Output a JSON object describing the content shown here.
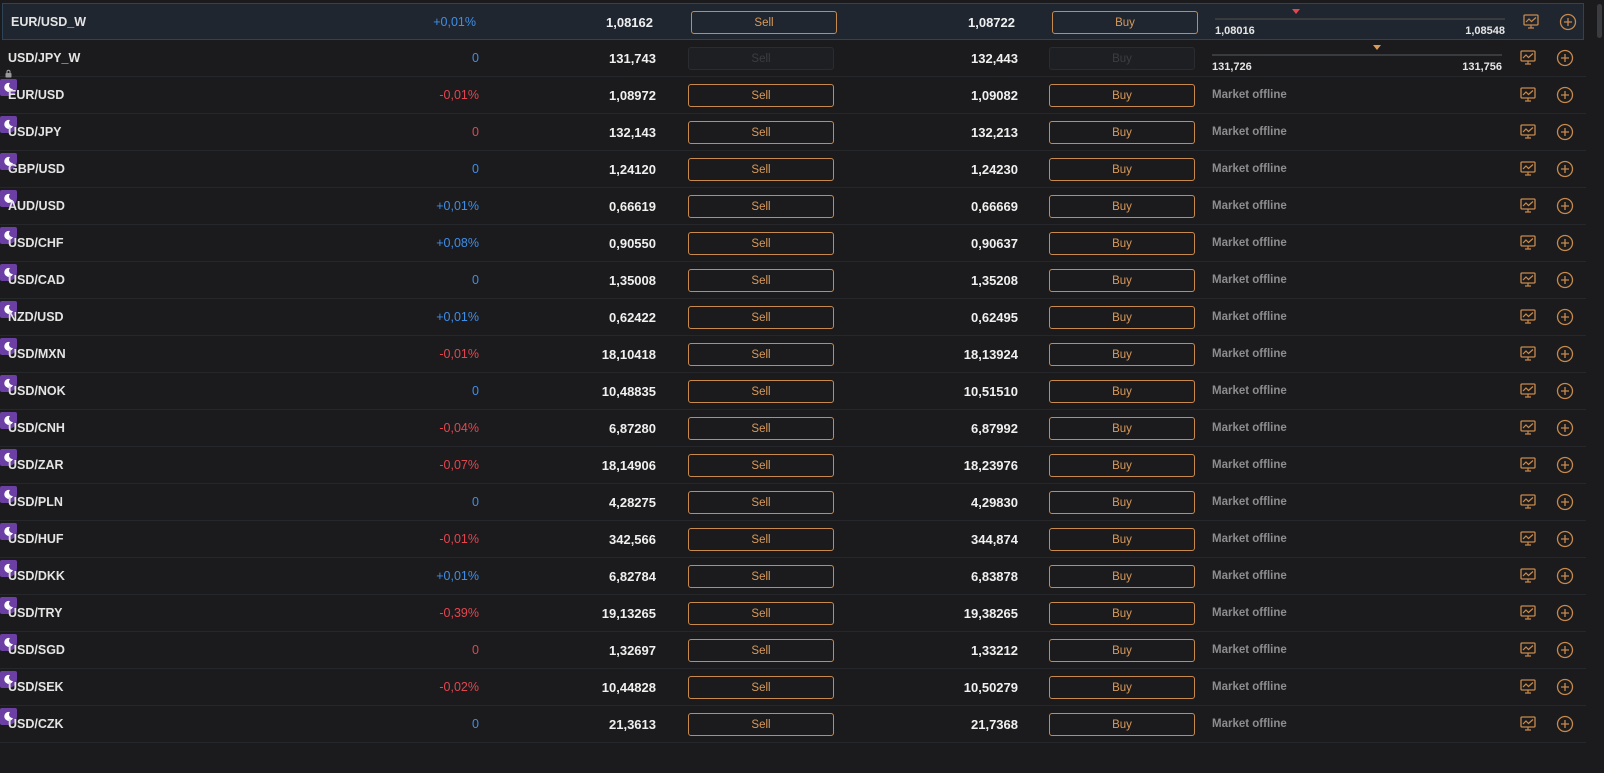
{
  "labels": {
    "sell": "Sell",
    "buy": "Buy",
    "offline": "Market offline"
  },
  "colors": {
    "positive": "#3f8ee8",
    "negative": "#e2464f",
    "accent": "#d99a5a",
    "offline_badge": "#6b3fa3"
  },
  "instruments": [
    {
      "symbol": "EUR/USD_W",
      "change": "+0,01%",
      "change_dir": "pos",
      "bid": "1,08162",
      "ask": "1,08722",
      "status": "range",
      "low": "1,08016",
      "high": "1,08548",
      "range_position": 0.28,
      "marker_color": "#e2464f",
      "offline_badge": false,
      "locked": false,
      "selected": true,
      "disabled": false
    },
    {
      "symbol": "USD/JPY_W",
      "change": "0",
      "change_dir": "zpos",
      "bid": "131,743",
      "ask": "132,443",
      "status": "range",
      "low": "131,726",
      "high": "131,756",
      "range_position": 0.57,
      "marker_color": "#d99a5a",
      "offline_badge": false,
      "locked": true,
      "selected": false,
      "disabled": true
    },
    {
      "symbol": "EUR/USD",
      "change": "-0,01%",
      "change_dir": "neg",
      "bid": "1,08972",
      "ask": "1,09082",
      "status": "offline",
      "offline_badge": true
    },
    {
      "symbol": "USD/JPY",
      "change": "0",
      "change_dir": "zneg",
      "bid": "132,143",
      "ask": "132,213",
      "status": "offline",
      "offline_badge": true
    },
    {
      "symbol": "GBP/USD",
      "change": "0",
      "change_dir": "zpos",
      "bid": "1,24120",
      "ask": "1,24230",
      "status": "offline",
      "offline_badge": true
    },
    {
      "symbol": "AUD/USD",
      "change": "+0,01%",
      "change_dir": "pos",
      "bid": "0,66619",
      "ask": "0,66669",
      "status": "offline",
      "offline_badge": true
    },
    {
      "symbol": "USD/CHF",
      "change": "+0,08%",
      "change_dir": "pos",
      "bid": "0,90550",
      "ask": "0,90637",
      "status": "offline",
      "offline_badge": true
    },
    {
      "symbol": "USD/CAD",
      "change": "0",
      "change_dir": "zpos",
      "bid": "1,35008",
      "ask": "1,35208",
      "status": "offline",
      "offline_badge": true
    },
    {
      "symbol": "NZD/USD",
      "change": "+0,01%",
      "change_dir": "pos",
      "bid": "0,62422",
      "ask": "0,62495",
      "status": "offline",
      "offline_badge": true
    },
    {
      "symbol": "USD/MXN",
      "change": "-0,01%",
      "change_dir": "neg",
      "bid": "18,10418",
      "ask": "18,13924",
      "status": "offline",
      "offline_badge": true
    },
    {
      "symbol": "USD/NOK",
      "change": "0",
      "change_dir": "zpos",
      "bid": "10,48835",
      "ask": "10,51510",
      "status": "offline",
      "offline_badge": true
    },
    {
      "symbol": "USD/CNH",
      "change": "-0,04%",
      "change_dir": "neg",
      "bid": "6,87280",
      "ask": "6,87992",
      "status": "offline",
      "offline_badge": true
    },
    {
      "symbol": "USD/ZAR",
      "change": "-0,07%",
      "change_dir": "neg",
      "bid": "18,14906",
      "ask": "18,23976",
      "status": "offline",
      "offline_badge": true
    },
    {
      "symbol": "USD/PLN",
      "change": "0",
      "change_dir": "zpos",
      "bid": "4,28275",
      "ask": "4,29830",
      "status": "offline",
      "offline_badge": true
    },
    {
      "symbol": "USD/HUF",
      "change": "-0,01%",
      "change_dir": "neg",
      "bid": "342,566",
      "ask": "344,874",
      "status": "offline",
      "offline_badge": true
    },
    {
      "symbol": "USD/DKK",
      "change": "+0,01%",
      "change_dir": "pos",
      "bid": "6,82784",
      "ask": "6,83878",
      "status": "offline",
      "offline_badge": true
    },
    {
      "symbol": "USD/TRY",
      "change": "-0,39%",
      "change_dir": "neg",
      "bid": "19,13265",
      "ask": "19,38265",
      "status": "offline",
      "offline_badge": true
    },
    {
      "symbol": "USD/SGD",
      "change": "0",
      "change_dir": "zneg",
      "bid": "1,32697",
      "ask": "1,33212",
      "status": "offline",
      "offline_badge": true
    },
    {
      "symbol": "USD/SEK",
      "change": "-0,02%",
      "change_dir": "neg",
      "bid": "10,44828",
      "ask": "10,50279",
      "status": "offline",
      "offline_badge": true
    },
    {
      "symbol": "USD/CZK",
      "change": "0",
      "change_dir": "zpos",
      "bid": "21,3613",
      "ask": "21,7368",
      "status": "offline",
      "offline_badge": true
    }
  ]
}
